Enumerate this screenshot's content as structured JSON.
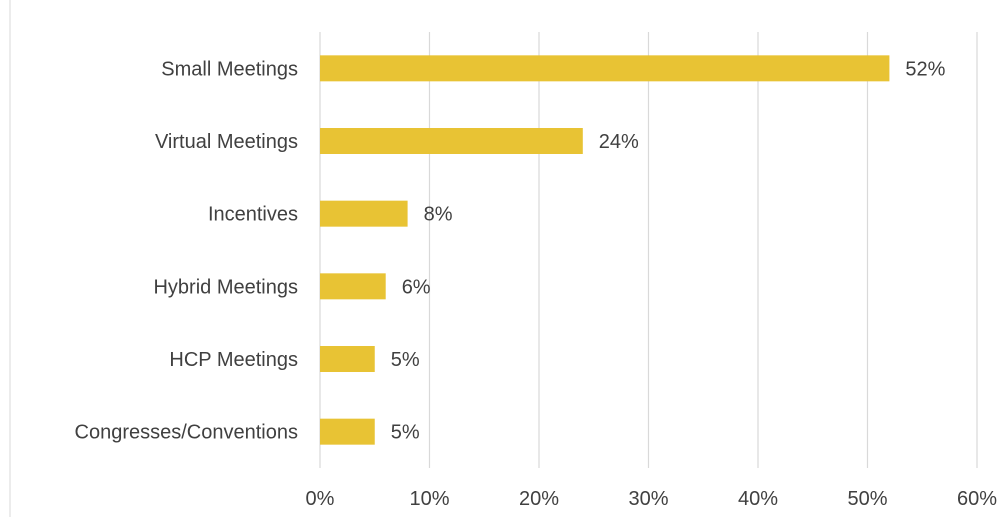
{
  "chart_data": {
    "type": "bar",
    "orientation": "horizontal",
    "categories": [
      "Small Meetings",
      "Virtual Meetings",
      "Incentives",
      "Hybrid Meetings",
      "HCP Meetings",
      "Congresses/Conventions"
    ],
    "values": [
      52,
      24,
      8,
      6,
      5,
      5
    ],
    "data_labels": [
      "52%",
      "24%",
      "8%",
      "6%",
      "5%",
      "5%"
    ],
    "xlim": [
      0,
      60
    ],
    "x_ticks": [
      0,
      10,
      20,
      30,
      40,
      50,
      60
    ],
    "x_tick_labels": [
      "0%",
      "10%",
      "20%",
      "30%",
      "40%",
      "50%",
      "60%"
    ],
    "title": "",
    "xlabel": "",
    "ylabel": "",
    "grid": true,
    "legend": "none",
    "colors": {
      "bar": "#E8C334",
      "grid": "#D9D9D9",
      "text": "#404040"
    }
  }
}
